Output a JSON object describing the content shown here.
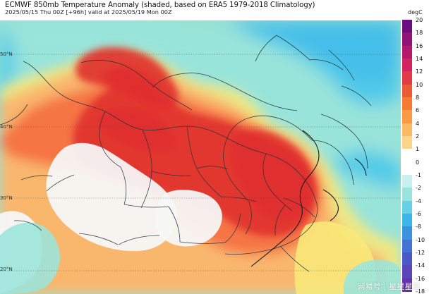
{
  "header": {
    "title": "ECMWF 850mb Temperature Anomaly (shaded, based on ERA5 1979-2018 Climatology)",
    "subtitle": "2025/05/15 Thu 00Z [+96h] valid at 2025/05/19 Mon 00Z"
  },
  "map": {
    "lat_labels": [
      "50°N",
      "40°N",
      "30°N",
      "20°N"
    ],
    "colors": {
      "warm_core": "#e0302d",
      "warm_mid": "#f56b3f",
      "warm_light": "#fbb16b",
      "yellow": "#f8e97a",
      "cool_light": "#9ae5db",
      "cool_mid": "#47c7ea",
      "cool_deep": "#3b77d9",
      "land_blank": "#f7f7f7"
    }
  },
  "legend": {
    "units": "degC",
    "ticks": [
      "20",
      "18",
      "16",
      "14",
      "12",
      "10",
      "8",
      "6",
      "4",
      "2",
      "1",
      "0",
      "-1",
      "-2",
      "-4",
      "-6",
      "-8",
      "-10",
      "-12",
      "-14",
      "-16",
      "-18"
    ],
    "colors": [
      "#6a0d83",
      "#8f1475",
      "#b31b6a",
      "#d1235d",
      "#e03b47",
      "#ea5b36",
      "#f47b2f",
      "#fa9a42",
      "#fbb964",
      "#fad58a",
      "#ffffff",
      "#ffffff",
      "#c9f2ef",
      "#98e4df",
      "#67cfe7",
      "#3eb5e8",
      "#3b93df",
      "#4273d6",
      "#4b59c8",
      "#5a45b9",
      "#6833a8"
    ]
  },
  "watermark": {
    "text": "网易号 | 星星星日"
  }
}
